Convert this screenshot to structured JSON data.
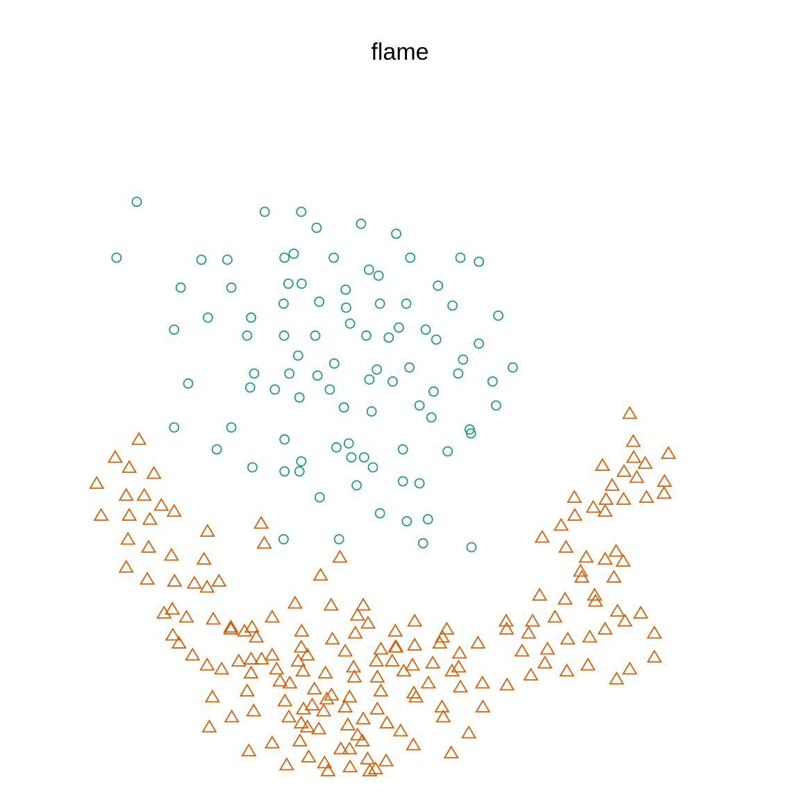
{
  "chart_data": {
    "type": "scatter",
    "title": "flame",
    "xlabel": "",
    "ylabel": "",
    "xlim": [
      0,
      15
    ],
    "ylim": [
      14,
      30
    ],
    "axes_visible": false,
    "grid": false,
    "series": [
      {
        "marker": "circle",
        "color": "#1b9e77",
        "points": [
          [
            1.53,
            28.25
          ],
          [
            1.07,
            26.85
          ],
          [
            4.44,
            28.0
          ],
          [
            5.27,
            28.0
          ],
          [
            5.62,
            27.6
          ],
          [
            6.63,
            27.7
          ],
          [
            7.43,
            27.45
          ],
          [
            6.01,
            26.85
          ],
          [
            5.1,
            26.95
          ],
          [
            4.89,
            26.85
          ],
          [
            3.59,
            26.8
          ],
          [
            3.0,
            26.8
          ],
          [
            6.81,
            26.55
          ],
          [
            7.75,
            26.85
          ],
          [
            8.89,
            26.85
          ],
          [
            9.31,
            26.75
          ],
          [
            7.03,
            26.4
          ],
          [
            8.38,
            26.15
          ],
          [
            4.98,
            26.2
          ],
          [
            6.28,
            26.05
          ],
          [
            5.28,
            26.2
          ],
          [
            3.68,
            26.1
          ],
          [
            4.87,
            25.7
          ],
          [
            5.68,
            25.75
          ],
          [
            6.29,
            25.6
          ],
          [
            7.06,
            25.7
          ],
          [
            7.66,
            25.7
          ],
          [
            8.71,
            25.65
          ],
          [
            9.75,
            25.4
          ],
          [
            2.53,
            26.1
          ],
          [
            3.15,
            25.35
          ],
          [
            4.13,
            25.35
          ],
          [
            6.38,
            25.2
          ],
          [
            7.49,
            25.1
          ],
          [
            8.1,
            25.05
          ],
          [
            2.38,
            25.05
          ],
          [
            4.04,
            24.9
          ],
          [
            4.88,
            24.9
          ],
          [
            5.59,
            24.9
          ],
          [
            6.75,
            24.9
          ],
          [
            7.26,
            24.85
          ],
          [
            8.34,
            24.8
          ],
          [
            9.31,
            24.7
          ],
          [
            8.95,
            24.3
          ],
          [
            10.08,
            24.1
          ],
          [
            5.2,
            24.4
          ],
          [
            6.02,
            24.2
          ],
          [
            6.99,
            24.05
          ],
          [
            7.73,
            24.1
          ],
          [
            8.84,
            23.95
          ],
          [
            9.62,
            23.75
          ],
          [
            9.7,
            23.15
          ],
          [
            4.2,
            23.95
          ],
          [
            5.0,
            23.95
          ],
          [
            5.64,
            23.9
          ],
          [
            6.82,
            23.8
          ],
          [
            7.35,
            23.75
          ],
          [
            8.28,
            23.5
          ],
          [
            2.7,
            23.7
          ],
          [
            4.11,
            23.6
          ],
          [
            4.67,
            23.55
          ],
          [
            5.23,
            23.35
          ],
          [
            5.92,
            23.55
          ],
          [
            6.24,
            23.1
          ],
          [
            6.87,
            23.0
          ],
          [
            7.96,
            23.15
          ],
          [
            8.23,
            22.85
          ],
          [
            9.1,
            22.55
          ],
          [
            2.38,
            22.6
          ],
          [
            3.68,
            22.6
          ],
          [
            6.35,
            22.2
          ],
          [
            6.7,
            21.85
          ],
          [
            3.35,
            22.05
          ],
          [
            4.89,
            22.3
          ],
          [
            6.07,
            22.1
          ],
          [
            7.58,
            22.05
          ],
          [
            8.6,
            22.0
          ],
          [
            9.13,
            22.45
          ],
          [
            4.16,
            21.6
          ],
          [
            4.89,
            21.5
          ],
          [
            5.27,
            21.75
          ],
          [
            5.23,
            21.5
          ],
          [
            6.41,
            21.85
          ],
          [
            7.96,
            21.2
          ],
          [
            6.53,
            21.15
          ],
          [
            7.58,
            21.25
          ],
          [
            5.69,
            20.85
          ],
          [
            7.06,
            20.45
          ],
          [
            7.67,
            20.25
          ],
          [
            8.15,
            20.3
          ],
          [
            4.87,
            19.8
          ],
          [
            6.13,
            19.8
          ],
          [
            8.04,
            19.7
          ],
          [
            9.14,
            19.6
          ],
          [
            6.9,
            21.6
          ]
        ]
      },
      {
        "marker": "triangle",
        "color": "#d95f02",
        "points": [
          [
            1.58,
            22.3
          ],
          [
            1.04,
            21.85
          ],
          [
            1.36,
            21.6
          ],
          [
            1.92,
            21.45
          ],
          [
            0.62,
            21.2
          ],
          [
            1.29,
            20.9
          ],
          [
            1.7,
            20.9
          ],
          [
            2.09,
            20.65
          ],
          [
            0.72,
            20.4
          ],
          [
            1.36,
            20.4
          ],
          [
            1.83,
            20.3
          ],
          [
            2.38,
            20.5
          ],
          [
            1.33,
            19.8
          ],
          [
            1.8,
            19.6
          ],
          [
            2.32,
            19.4
          ],
          [
            1.29,
            19.1
          ],
          [
            1.77,
            18.8
          ],
          [
            2.39,
            18.75
          ],
          [
            2.84,
            18.7
          ],
          [
            3.4,
            18.75
          ],
          [
            2.15,
            17.95
          ],
          [
            2.66,
            17.85
          ],
          [
            3.27,
            17.8
          ],
          [
            3.67,
            17.6
          ],
          [
            3.98,
            17.5
          ],
          [
            4.25,
            17.35
          ],
          [
            2.35,
            17.4
          ],
          [
            2.49,
            17.2
          ],
          [
            2.8,
            16.9
          ],
          [
            3.13,
            16.65
          ],
          [
            3.46,
            16.55
          ],
          [
            4.13,
            16.8
          ],
          [
            4.61,
            16.9
          ],
          [
            5.27,
            17.1
          ],
          [
            5.98,
            17.3
          ],
          [
            6.5,
            17.45
          ],
          [
            7.08,
            17.05
          ],
          [
            7.43,
            17.1
          ],
          [
            7.8,
            16.65
          ],
          [
            8.7,
            16.5
          ],
          [
            8.89,
            16.1
          ],
          [
            9.39,
            16.2
          ],
          [
            9.95,
            16.15
          ],
          [
            10.49,
            16.4
          ],
          [
            10.81,
            16.7
          ],
          [
            11.31,
            16.5
          ],
          [
            11.79,
            16.65
          ],
          [
            12.44,
            16.3
          ],
          [
            12.74,
            16.55
          ],
          [
            13.3,
            16.85
          ],
          [
            13.3,
            17.45
          ],
          [
            3.14,
            20.0
          ],
          [
            4.36,
            20.2
          ],
          [
            4.43,
            19.7
          ],
          [
            6.15,
            19.35
          ],
          [
            3.06,
            19.3
          ],
          [
            3.13,
            18.6
          ],
          [
            2.34,
            18.05
          ],
          [
            5.71,
            18.9
          ],
          [
            5.13,
            18.2
          ],
          [
            5.28,
            17.5
          ],
          [
            6.55,
            17.9
          ],
          [
            6.79,
            17.7
          ],
          [
            7.41,
            17.5
          ],
          [
            7.85,
            17.15
          ],
          [
            8.42,
            17.2
          ],
          [
            8.87,
            16.95
          ],
          [
            8.58,
            17.55
          ],
          [
            9.29,
            17.2
          ],
          [
            9.94,
            17.55
          ],
          [
            10.29,
            17.0
          ],
          [
            10.44,
            17.45
          ],
          [
            10.87,
            17.05
          ],
          [
            11.33,
            17.3
          ],
          [
            11.83,
            17.35
          ],
          [
            12.18,
            17.55
          ],
          [
            12.63,
            17.75
          ],
          [
            12.99,
            17.95
          ],
          [
            12.46,
            18.0
          ],
          [
            11.96,
            18.25
          ],
          [
            11.27,
            18.3
          ],
          [
            11.04,
            17.85
          ],
          [
            10.53,
            17.75
          ],
          [
            9.93,
            17.75
          ],
          [
            10.69,
            18.4
          ],
          [
            11.65,
            18.85
          ],
          [
            11.94,
            18.4
          ],
          [
            12.38,
            18.85
          ],
          [
            12.18,
            19.3
          ],
          [
            12.59,
            19.25
          ],
          [
            11.62,
            19.0
          ],
          [
            11.29,
            19.6
          ],
          [
            11.75,
            19.35
          ],
          [
            12.43,
            19.5
          ],
          [
            10.75,
            19.85
          ],
          [
            11.18,
            20.15
          ],
          [
            11.49,
            20.4
          ],
          [
            12.18,
            20.5
          ],
          [
            12.6,
            20.8
          ],
          [
            13.12,
            20.85
          ],
          [
            13.52,
            20.95
          ],
          [
            12.9,
            21.35
          ],
          [
            12.34,
            21.15
          ],
          [
            12.2,
            20.8
          ],
          [
            11.91,
            20.6
          ],
          [
            11.48,
            20.85
          ],
          [
            12.12,
            21.65
          ],
          [
            12.61,
            21.5
          ],
          [
            12.83,
            21.85
          ],
          [
            13.53,
            21.25
          ],
          [
            13.62,
            21.95
          ],
          [
            13.09,
            21.7
          ],
          [
            12.82,
            22.25
          ],
          [
            12.74,
            22.95
          ],
          [
            4.61,
            17.85
          ],
          [
            4.15,
            17.6
          ],
          [
            4.37,
            16.8
          ],
          [
            3.85,
            16.75
          ],
          [
            4.71,
            16.55
          ],
          [
            5.01,
            16.2
          ],
          [
            5.31,
            16.5
          ],
          [
            5.41,
            16.9
          ],
          [
            5.82,
            16.45
          ],
          [
            5.57,
            16.05
          ],
          [
            6.46,
            16.6
          ],
          [
            6.98,
            16.75
          ],
          [
            7.34,
            16.75
          ],
          [
            8.26,
            16.7
          ],
          [
            8.16,
            16.2
          ],
          [
            7.83,
            15.95
          ],
          [
            7.6,
            16.5
          ],
          [
            7.08,
            16.0
          ],
          [
            6.37,
            15.85
          ],
          [
            5.85,
            15.8
          ],
          [
            5.52,
            15.65
          ],
          [
            4.9,
            15.75
          ],
          [
            4.19,
            15.5
          ],
          [
            4.99,
            15.35
          ],
          [
            5.78,
            15.5
          ],
          [
            6.27,
            15.6
          ],
          [
            7.0,
            15.55
          ],
          [
            8.47,
            15.6
          ],
          [
            7.53,
            15.0
          ],
          [
            6.55,
            14.9
          ],
          [
            6.33,
            15.15
          ],
          [
            5.67,
            15.05
          ],
          [
            5.24,
            14.75
          ],
          [
            4.61,
            14.7
          ],
          [
            4.79,
            16.25
          ],
          [
            4.04,
            16.0
          ],
          [
            6.48,
            16.35
          ],
          [
            7.0,
            16.35
          ],
          [
            7.41,
            17.1
          ],
          [
            6.68,
            15.3
          ],
          [
            6.27,
            17.0
          ],
          [
            5.32,
            15.55
          ],
          [
            6.68,
            18.15
          ],
          [
            5.27,
            15.2
          ],
          [
            5.95,
            18.15
          ],
          [
            5.41,
            15.1
          ],
          [
            4.94,
            14.15
          ],
          [
            3.67,
            17.55
          ],
          [
            3.25,
            15.85
          ],
          [
            4.08,
            14.5
          ],
          [
            3.69,
            15.35
          ],
          [
            5.2,
            16.75
          ],
          [
            7.22,
            15.2
          ],
          [
            6.78,
            14.3
          ],
          [
            7.82,
            14.65
          ],
          [
            8.68,
            14.45
          ],
          [
            7.2,
            14.25
          ],
          [
            6.37,
            14.55
          ],
          [
            5.96,
            15.9
          ],
          [
            5.44,
            14.35
          ],
          [
            4.13,
            16.45
          ],
          [
            3.18,
            15.1
          ],
          [
            8.48,
            17.35
          ],
          [
            7.85,
            17.75
          ],
          [
            9.4,
            15.6
          ],
          [
            8.5,
            15.35
          ],
          [
            7.88,
            15.85
          ],
          [
            8.85,
            16.6
          ],
          [
            9.08,
            14.95
          ],
          [
            6.83,
            14.0
          ],
          [
            5.8,
            14.2
          ],
          [
            5.88,
            14.0
          ],
          [
            6.96,
            14.05
          ],
          [
            6.17,
            14.55
          ],
          [
            6.66,
            14.75
          ],
          [
            6.38,
            14.1
          ]
        ]
      }
    ]
  }
}
